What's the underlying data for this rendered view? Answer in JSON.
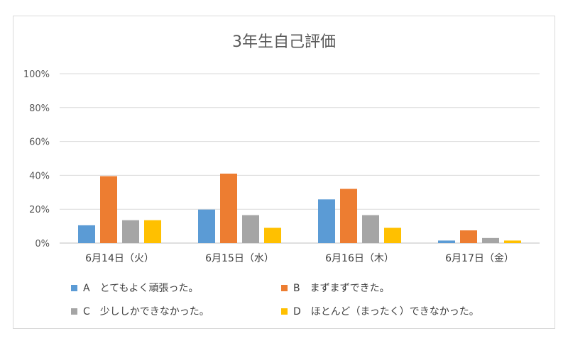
{
  "chart_data": {
    "type": "bar",
    "title": "3年生自己評価",
    "categories": [
      "6月14日（火）",
      "6月15日（水）",
      "6月16日（木）",
      "6月17日（金）"
    ],
    "series": [
      {
        "name": "A　とてもよく頑張った。",
        "color": "#5b9bd5",
        "values": [
          10.5,
          19.8,
          25.8,
          1.5
        ]
      },
      {
        "name": "B　まずまずできた。",
        "color": "#ed7d31",
        "values": [
          39.5,
          41.0,
          32.0,
          7.5
        ]
      },
      {
        "name": "C　少ししかできなかった。",
        "color": "#a5a5a5",
        "values": [
          13.5,
          16.5,
          16.5,
          3.0
        ]
      },
      {
        "name": "D　ほとんど（まったく）できなかった。",
        "color": "#ffc000",
        "values": [
          13.5,
          9.0,
          9.0,
          1.5
        ]
      }
    ],
    "yticks": [
      "0%",
      "20%",
      "40%",
      "60%",
      "80%",
      "100%"
    ],
    "ylim": [
      0,
      100
    ],
    "grid": true,
    "legend_position": "bottom"
  }
}
